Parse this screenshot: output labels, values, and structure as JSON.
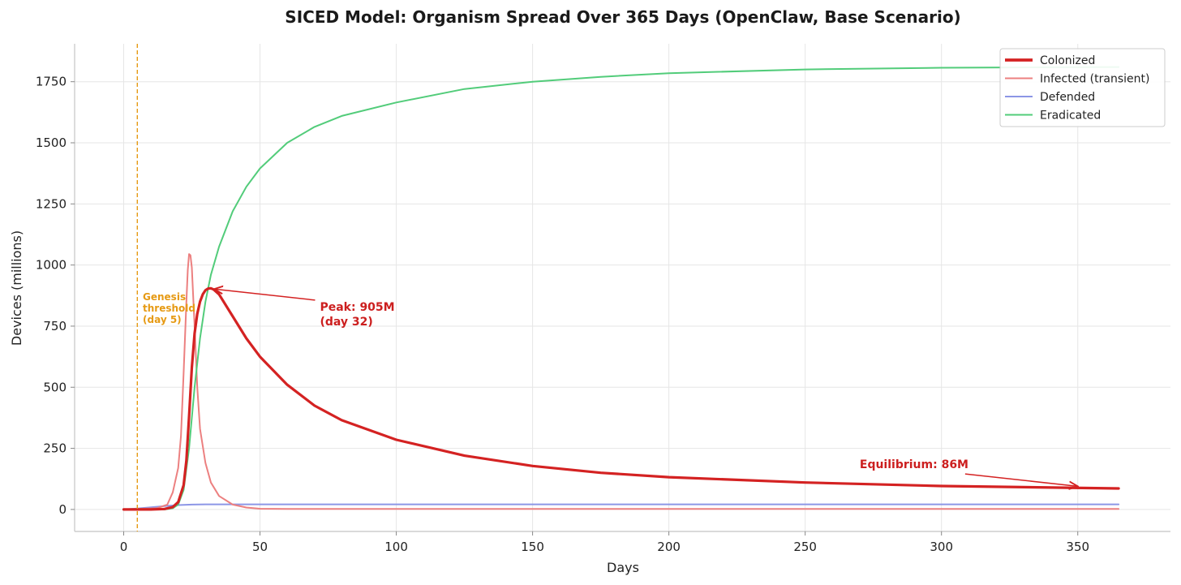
{
  "chart_data": {
    "type": "line",
    "title": "SICED Model: Organism Spread Over 365 Days (OpenClaw, Base Scenario)",
    "xlabel": "Days",
    "ylabel": "Devices (millions)",
    "xlim": [
      -18,
      384
    ],
    "ylim": [
      -90,
      1905
    ],
    "x_ticks": [
      0,
      50,
      100,
      150,
      200,
      250,
      300,
      350
    ],
    "y_ticks": [
      0,
      250,
      500,
      750,
      1000,
      1250,
      1500,
      1750
    ],
    "grid": true,
    "legend_position": "top-right",
    "colors": {
      "colonized": "#d42222",
      "infected": "#ec8080",
      "defended": "#8c96e6",
      "eradicated": "#52cc7a",
      "genesis": "#e69a14"
    },
    "series": [
      {
        "name": "Colonized",
        "key": "colonized",
        "x": [
          0,
          10,
          15,
          18,
          20,
          22,
          23,
          24,
          25,
          26,
          27,
          28,
          29,
          30,
          31,
          32,
          33,
          35,
          40,
          45,
          50,
          60,
          70,
          80,
          100,
          125,
          150,
          175,
          200,
          250,
          300,
          365
        ],
        "values": [
          0,
          0,
          2,
          10,
          30,
          100,
          200,
          380,
          580,
          720,
          800,
          850,
          880,
          897,
          904,
          905,
          900,
          880,
          790,
          700,
          625,
          510,
          425,
          365,
          285,
          220,
          178,
          150,
          132,
          110,
          96,
          86
        ]
      },
      {
        "name": "Infected (transient)",
        "key": "infected",
        "x": [
          0,
          12,
          16,
          18,
          20,
          21,
          22,
          23,
          23.5,
          24,
          24.5,
          25,
          26,
          27,
          28,
          30,
          32,
          35,
          40,
          45,
          50,
          60,
          100,
          365
        ],
        "values": [
          0,
          5,
          20,
          70,
          170,
          300,
          560,
          850,
          980,
          1045,
          1040,
          990,
          750,
          500,
          330,
          190,
          110,
          55,
          20,
          8,
          3,
          2,
          2,
          2
        ]
      },
      {
        "name": "Defended",
        "key": "defended",
        "x": [
          0,
          5,
          10,
          15,
          20,
          25,
          30,
          50,
          100,
          365
        ],
        "values": [
          0,
          4,
          9,
          14,
          18,
          20,
          21,
          21,
          21,
          21
        ]
      },
      {
        "name": "Eradicated",
        "key": "eradicated",
        "x": [
          0,
          10,
          15,
          18,
          20,
          22,
          24,
          26,
          28,
          30,
          32,
          35,
          40,
          45,
          50,
          60,
          70,
          80,
          100,
          125,
          150,
          175,
          200,
          250,
          300,
          365
        ],
        "values": [
          0,
          0,
          0,
          5,
          20,
          80,
          250,
          500,
          700,
          850,
          960,
          1075,
          1220,
          1320,
          1395,
          1500,
          1565,
          1610,
          1665,
          1720,
          1750,
          1770,
          1785,
          1800,
          1807,
          1810
        ]
      }
    ],
    "annotations": {
      "genesis": {
        "day": 5,
        "lines": [
          "Genesis",
          "threshold",
          "(day 5)"
        ],
        "text_x": 7,
        "text_y": 820
      },
      "peak": {
        "lines": [
          "Peak: 905M",
          "(day 32)"
        ],
        "point_x": 32,
        "point_y": 905,
        "text_x": 72,
        "text_y": 800
      },
      "equilibrium": {
        "text": "Equilibrium: 86M",
        "point_x": 350,
        "point_y": 88,
        "text_x": 270,
        "text_y": 185
      }
    }
  }
}
